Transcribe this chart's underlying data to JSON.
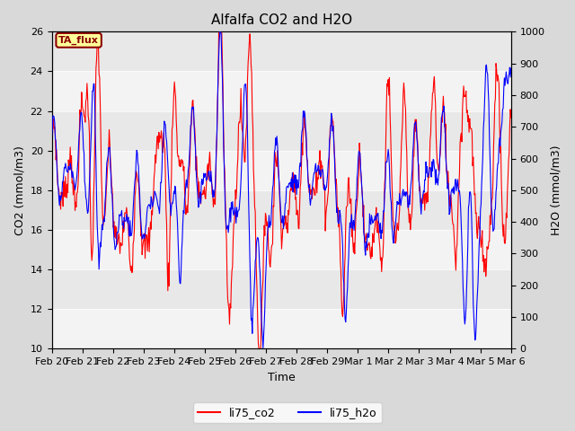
{
  "title": "Alfalfa CO2 and H2O",
  "xlabel": "Time",
  "ylabel_left": "CO2 (mmol/m3)",
  "ylabel_right": "H2O (mmol/m3)",
  "ylim_left": [
    10,
    26
  ],
  "ylim_right": [
    0,
    1000
  ],
  "yticks_left": [
    10,
    12,
    14,
    16,
    18,
    20,
    22,
    24,
    26
  ],
  "yticks_right": [
    0,
    100,
    200,
    300,
    400,
    500,
    600,
    700,
    800,
    900,
    1000
  ],
  "xtick_labels": [
    "Feb 20",
    "Feb 21",
    "Feb 22",
    "Feb 23",
    "Feb 24",
    "Feb 25",
    "Feb 26",
    "Feb 27",
    "Feb 28",
    "Feb 29",
    "Mar 1",
    "Mar 2",
    "Mar 3",
    "Mar 4",
    "Mar 5",
    "Mar 6"
  ],
  "legend_labels": [
    "li75_co2",
    "li75_h2o"
  ],
  "legend_colors": [
    "red",
    "blue"
  ],
  "annotation_text": "TA_flux",
  "annotation_color": "#8B0000",
  "annotation_bg": "#FFFF99",
  "line_co2_color": "red",
  "line_h2o_color": "blue",
  "background_color": "#d9d9d9",
  "plot_bg_color": "#e8e8e8",
  "stripe_color": "#d0d0d0",
  "title_fontsize": 11,
  "axis_fontsize": 9,
  "tick_fontsize": 8
}
